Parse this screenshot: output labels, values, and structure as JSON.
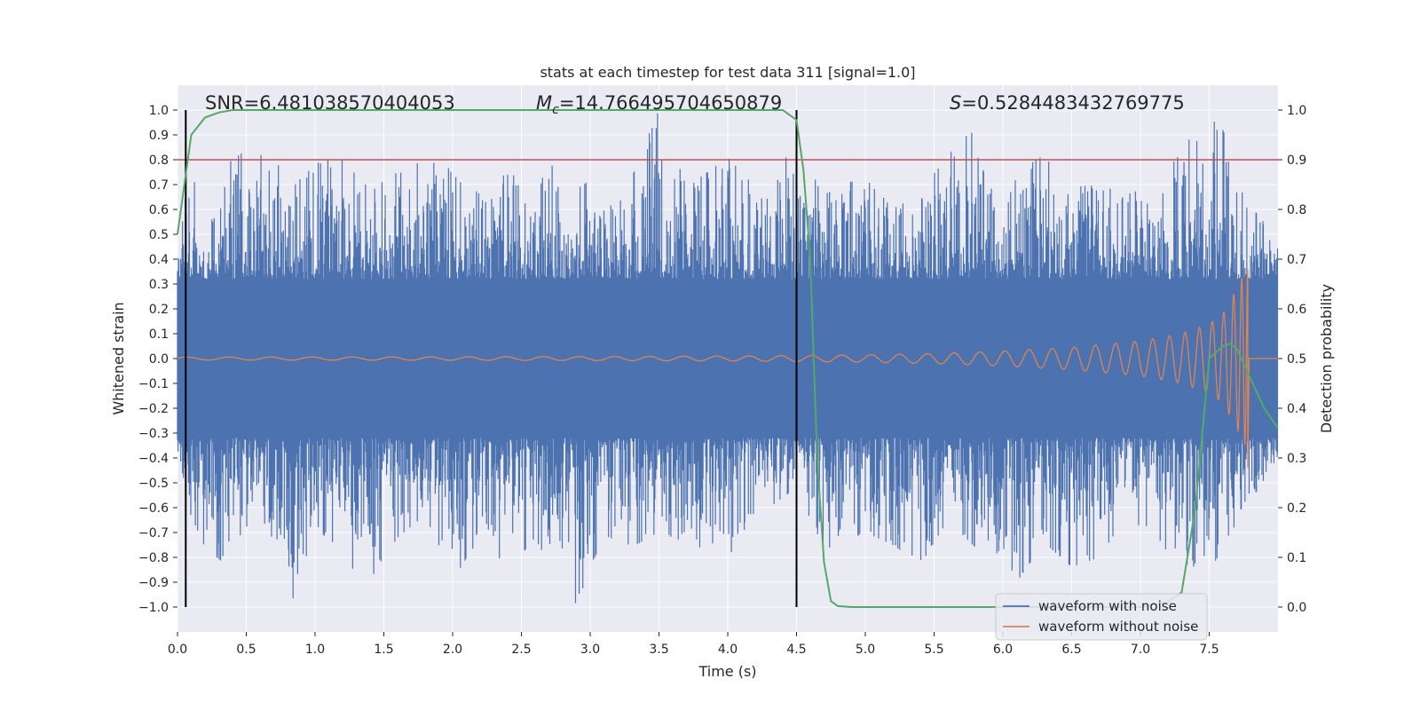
{
  "chart_data": {
    "type": "line",
    "title": "stats at each timestep for test data 311 [signal=1.0]",
    "xlabel": "Time (s)",
    "ylabel": "Whitened strain",
    "y2label": "Detection probability",
    "xlim": [
      0,
      8
    ],
    "ylim": [
      -1.1,
      1.1
    ],
    "y2lim": [
      -0.05,
      1.05
    ],
    "x_ticks": [
      0.0,
      0.5,
      1.0,
      1.5,
      2.0,
      2.5,
      3.0,
      3.5,
      4.0,
      4.5,
      5.0,
      5.5,
      6.0,
      6.5,
      7.0,
      7.5
    ],
    "x_tick_labels": [
      "0.0",
      "0.5",
      "1.0",
      "1.5",
      "2.0",
      "2.5",
      "3.0",
      "3.5",
      "4.0",
      "4.5",
      "5.0",
      "5.5",
      "6.0",
      "6.5",
      "7.0",
      "7.5"
    ],
    "y_ticks": [
      1.0,
      0.9,
      0.8,
      0.7,
      0.6,
      0.5,
      0.4,
      0.3,
      0.2,
      0.1,
      0.0,
      -0.1,
      -0.2,
      -0.3,
      -0.4,
      -0.5,
      -0.6,
      -0.7,
      -0.8,
      -0.9,
      -1.0
    ],
    "y_tick_labels": [
      "1.0",
      "0.9",
      "0.8",
      "0.7",
      "0.6",
      "0.5",
      "0.4",
      "0.3",
      "0.2",
      "0.1",
      "0.0",
      "−0.1",
      "−0.2",
      "−0.3",
      "−0.4",
      "−0.5",
      "−0.6",
      "−0.7",
      "−0.8",
      "−0.9",
      "−1.0"
    ],
    "y2_ticks": [
      1.0,
      0.9,
      0.8,
      0.7,
      0.6,
      0.5,
      0.4,
      0.3,
      0.2,
      0.1,
      0.0
    ],
    "y2_tick_labels": [
      "1.0",
      "0.9",
      "0.8",
      "0.7",
      "0.6",
      "0.5",
      "0.4",
      "0.3",
      "0.2",
      "0.1",
      "0.0"
    ],
    "grid": true,
    "legend_placement": "lower-right",
    "series": [
      {
        "name": "waveform with noise",
        "color": "#4c72b0",
        "envelope_upper": [
          [
            0.0,
            0.38
          ],
          [
            0.1,
            0.85
          ],
          [
            0.2,
            0.45
          ],
          [
            0.35,
            0.78
          ],
          [
            0.5,
            0.84
          ],
          [
            0.7,
            0.8
          ],
          [
            0.85,
            0.7
          ],
          [
            1.0,
            0.78
          ],
          [
            1.2,
            0.85
          ],
          [
            1.4,
            0.69
          ],
          [
            1.6,
            0.75
          ],
          [
            1.8,
            0.8
          ],
          [
            2.0,
            0.76
          ],
          [
            2.2,
            0.66
          ],
          [
            2.4,
            0.75
          ],
          [
            2.6,
            0.69
          ],
          [
            2.8,
            0.83
          ],
          [
            3.0,
            0.7
          ],
          [
            3.2,
            0.63
          ],
          [
            3.5,
            1.0
          ],
          [
            3.7,
            0.69
          ],
          [
            4.0,
            0.81
          ],
          [
            4.2,
            0.69
          ],
          [
            4.5,
            0.85
          ],
          [
            4.7,
            0.66
          ],
          [
            5.0,
            0.74
          ],
          [
            5.2,
            0.6
          ],
          [
            5.4,
            0.68
          ],
          [
            5.6,
            0.81
          ],
          [
            5.75,
            0.95
          ],
          [
            5.9,
            0.68
          ],
          [
            6.1,
            0.72
          ],
          [
            6.3,
            0.84
          ],
          [
            6.5,
            0.69
          ],
          [
            6.7,
            0.7
          ],
          [
            6.9,
            0.66
          ],
          [
            7.1,
            0.7
          ],
          [
            7.3,
            0.83
          ],
          [
            7.45,
            1.0
          ],
          [
            7.6,
            0.92
          ],
          [
            7.75,
            0.68
          ],
          [
            8.0,
            0.48
          ]
        ],
        "envelope_lower": [
          [
            0.0,
            -0.36
          ],
          [
            0.05,
            -0.57
          ],
          [
            0.2,
            -0.76
          ],
          [
            0.35,
            -0.83
          ],
          [
            0.5,
            -0.73
          ],
          [
            0.65,
            -0.68
          ],
          [
            0.85,
            -0.98
          ],
          [
            1.0,
            -0.66
          ],
          [
            1.2,
            -0.82
          ],
          [
            1.4,
            -0.89
          ],
          [
            1.6,
            -0.72
          ],
          [
            1.8,
            -0.63
          ],
          [
            2.0,
            -0.89
          ],
          [
            2.2,
            -0.72
          ],
          [
            2.4,
            -0.84
          ],
          [
            2.6,
            -0.73
          ],
          [
            2.9,
            -0.99
          ],
          [
            3.1,
            -0.71
          ],
          [
            3.3,
            -0.76
          ],
          [
            3.5,
            -0.7
          ],
          [
            3.7,
            -0.74
          ],
          [
            4.0,
            -0.8
          ],
          [
            4.2,
            -0.64
          ],
          [
            4.5,
            -0.52
          ],
          [
            4.7,
            -0.77
          ],
          [
            5.0,
            -0.7
          ],
          [
            5.2,
            -0.75
          ],
          [
            5.4,
            -0.83
          ],
          [
            5.6,
            -0.65
          ],
          [
            5.8,
            -0.76
          ],
          [
            6.0,
            -0.79
          ],
          [
            6.1,
            -0.9
          ],
          [
            6.3,
            -0.74
          ],
          [
            6.5,
            -0.84
          ],
          [
            6.7,
            -0.8
          ],
          [
            6.9,
            -0.63
          ],
          [
            7.1,
            -0.76
          ],
          [
            7.3,
            -0.82
          ],
          [
            7.5,
            -0.86
          ],
          [
            7.7,
            -0.66
          ],
          [
            8.0,
            -0.4
          ]
        ]
      },
      {
        "name": "waveform without noise",
        "color": "#dd8452",
        "envelope": [
          [
            0.0,
            0.006
          ],
          [
            2.0,
            0.007
          ],
          [
            3.0,
            0.008
          ],
          [
            4.0,
            0.01
          ],
          [
            4.5,
            0.012
          ],
          [
            5.0,
            0.015
          ],
          [
            5.5,
            0.02
          ],
          [
            6.0,
            0.03
          ],
          [
            6.5,
            0.045
          ],
          [
            7.0,
            0.07
          ],
          [
            7.3,
            0.1
          ],
          [
            7.5,
            0.14
          ],
          [
            7.6,
            0.18
          ],
          [
            7.7,
            0.28
          ],
          [
            7.75,
            0.34
          ],
          [
            7.78,
            0.36
          ]
        ],
        "end_time": 7.78
      },
      {
        "name": "",
        "axis": "y2",
        "color": "#55a868",
        "x": [
          0.0,
          0.05,
          0.1,
          0.2,
          0.3,
          0.4,
          0.5,
          1.0,
          2.0,
          3.0,
          4.0,
          4.3,
          4.4,
          4.5,
          4.55,
          4.6,
          4.65,
          4.7,
          4.75,
          4.8,
          4.9,
          5.0,
          6.0,
          7.0,
          7.2,
          7.3,
          7.4,
          7.5,
          7.6,
          7.65,
          7.7,
          7.8,
          7.9,
          8.0
        ],
        "y": [
          0.75,
          0.85,
          0.95,
          0.985,
          0.995,
          1.0,
          1.0,
          1.0,
          1.0,
          1.0,
          1.0,
          1.0,
          1.0,
          0.98,
          0.88,
          0.7,
          0.3,
          0.09,
          0.012,
          0.002,
          0.0,
          0.0,
          0.0,
          0.0,
          0.01,
          0.03,
          0.2,
          0.5,
          0.525,
          0.53,
          0.52,
          0.46,
          0.4,
          0.36
        ]
      }
    ],
    "hlines": [
      {
        "y": 0.8,
        "color": "#c44e52"
      }
    ],
    "vlines": [
      {
        "x": 0.06,
        "color": "#000000"
      },
      {
        "x": 4.5,
        "color": "#000000"
      }
    ],
    "annotations": {
      "snr": "SNR=6.481038570404053",
      "mc_symbol": "M",
      "mc_sub": "c",
      "mc_value": "=14.766495704650879",
      "s_symbol": "S",
      "s_value": "=0.5284483432769775"
    }
  }
}
